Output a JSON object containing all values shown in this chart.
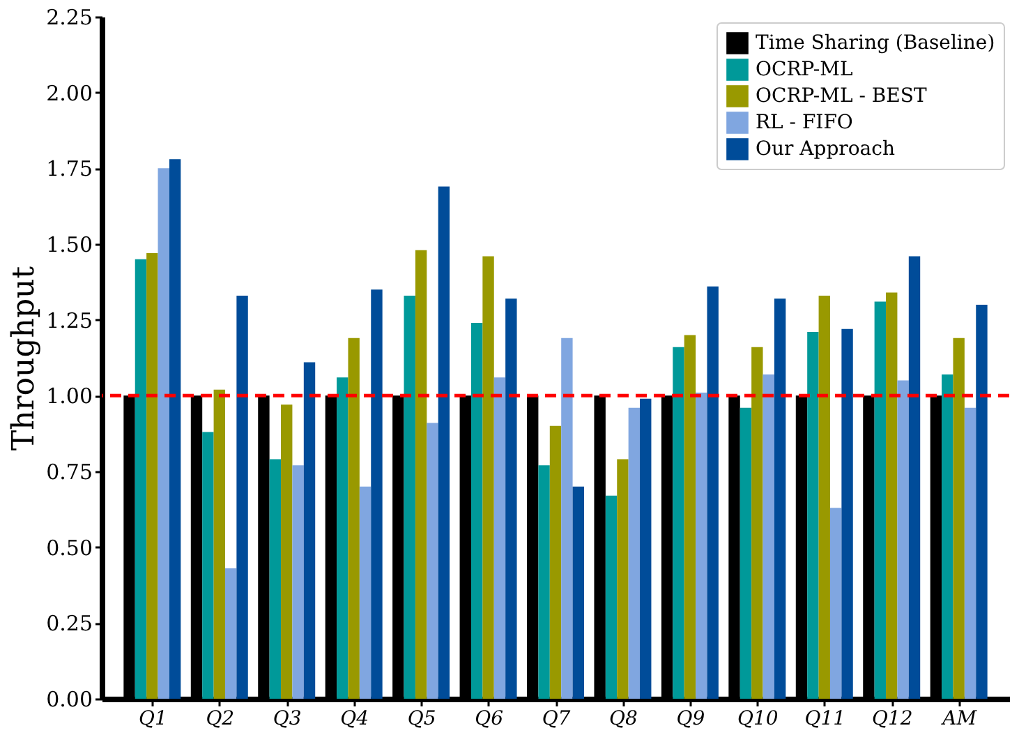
{
  "chart_data": {
    "type": "bar",
    "ylabel": "Throughput",
    "categories": [
      "Q1",
      "Q2",
      "Q3",
      "Q4",
      "Q5",
      "Q6",
      "Q7",
      "Q8",
      "Q9",
      "Q10",
      "Q11",
      "Q12",
      "AM"
    ],
    "series": [
      {
        "name": "Time Sharing (Baseline)",
        "color": "#000000",
        "values": [
          1,
          1,
          1,
          1,
          1,
          1,
          1,
          1,
          1,
          1,
          1,
          1,
          1
        ]
      },
      {
        "name": "OCRP-ML",
        "color": "#009999",
        "values": [
          1.45,
          0.88,
          0.79,
          1.06,
          1.33,
          1.24,
          0.77,
          0.67,
          1.16,
          0.96,
          1.21,
          1.31,
          1.07
        ]
      },
      {
        "name": "OCRP-ML - BEST",
        "color": "#999900",
        "values": [
          1.47,
          1.02,
          0.97,
          1.19,
          1.48,
          1.46,
          0.9,
          0.79,
          1.2,
          1.16,
          1.33,
          1.34,
          1.19
        ]
      },
      {
        "name": "RL - FIFO",
        "color": "#80a6e0",
        "values": [
          1.75,
          0.43,
          0.77,
          0.7,
          0.91,
          1.06,
          1.19,
          0.96,
          1.01,
          1.07,
          0.63,
          1.05,
          0.96
        ]
      },
      {
        "name": "Our Approach",
        "color": "#004c99",
        "values": [
          1.78,
          1.33,
          1.11,
          1.35,
          1.69,
          1.32,
          0.7,
          0.99,
          1.36,
          1.32,
          1.22,
          1.46,
          1.3
        ]
      }
    ],
    "ylim": [
      0,
      2.25
    ],
    "yticks": [
      {
        "value": 0,
        "label": "0.00"
      },
      0.25,
      {
        "value": 0.5,
        "label": "0.50"
      },
      0.75,
      {
        "value": 1,
        "label": "1.00"
      },
      1.25,
      {
        "value": 1.5,
        "label": "1.50"
      },
      1.75,
      {
        "value": 2,
        "label": "2.00"
      },
      2.25
    ],
    "ref_lines": [
      {
        "axis": "y",
        "value": 1.0,
        "color": "#ff0000",
        "line_style": "dashed"
      }
    ],
    "grid": false,
    "legend": "top right"
  }
}
